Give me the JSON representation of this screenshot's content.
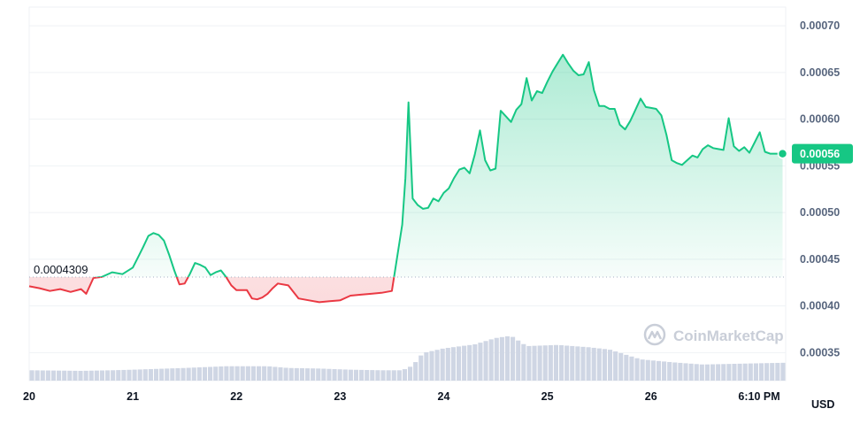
{
  "chart_data": {
    "type": "line",
    "title": "",
    "xlabel": "",
    "ylabel": "",
    "currency": "USD",
    "watermark": "CoinMarketCap",
    "reference_price": 0.0004309,
    "reference_price_label": "0.0004309",
    "current_price": 0.000563,
    "current_price_label": "0.00056",
    "ylim": [
      0.00032,
      0.00072
    ],
    "y_ticks": [
      0.00035,
      0.0004,
      0.00045,
      0.0005,
      0.00055,
      0.0006,
      0.00065,
      0.0007
    ],
    "y_tick_labels": [
      "0.00035",
      "0.00040",
      "0.00045",
      "0.00050",
      "0.00055",
      "0.00060",
      "0.00065",
      "0.00070"
    ],
    "x_ticks": [
      20,
      21,
      22,
      23,
      24,
      25,
      26,
      27
    ],
    "x_tick_labels": [
      "20",
      "21",
      "22",
      "23",
      "24",
      "25",
      "26",
      "6:10 PM"
    ],
    "xlim": [
      20,
      27.3
    ],
    "grid": true,
    "colors": {
      "up": "#16c784",
      "down": "#ea3943",
      "volume": "#cfd6e4",
      "grid": "#eff2f5",
      "reference_line": "#a6b0c3"
    },
    "series": [
      {
        "x": [
          20.0,
          20.1,
          20.2,
          20.3,
          20.4,
          20.5,
          20.55,
          20.62,
          20.7,
          20.8,
          20.9,
          21.0,
          21.05,
          21.1,
          21.15,
          21.2,
          21.25,
          21.3,
          21.35,
          21.4,
          21.45,
          21.5,
          21.55,
          21.6,
          21.65,
          21.7,
          21.75,
          21.8,
          21.85,
          21.9,
          21.95,
          22.0,
          22.05,
          22.1,
          22.15,
          22.2,
          22.25,
          22.3,
          22.35,
          22.4,
          22.5,
          22.6,
          22.7,
          22.8,
          22.9,
          23.0,
          23.1,
          23.2,
          23.3,
          23.4,
          23.5,
          23.6,
          23.63,
          23.66,
          23.7,
          23.75,
          23.8,
          23.85,
          23.9,
          23.95,
          24.0,
          24.05,
          24.1,
          24.15,
          24.2,
          24.25,
          24.3,
          24.35,
          24.4,
          24.45,
          24.5,
          24.55,
          24.6,
          24.65,
          24.7,
          24.75,
          24.8,
          24.85,
          24.9,
          24.95,
          25.0,
          25.05,
          25.1,
          25.15,
          25.2,
          25.25,
          25.3,
          25.35,
          25.4,
          25.45,
          25.5,
          25.55,
          25.6,
          25.65,
          25.7,
          25.75,
          25.8,
          25.85,
          25.9,
          25.95,
          26.0,
          26.05,
          26.1,
          26.15,
          26.2,
          26.25,
          26.3,
          26.35,
          26.4,
          26.45,
          26.5,
          26.55,
          26.6,
          26.65,
          26.7,
          26.75,
          26.8,
          26.85,
          26.9,
          26.95,
          27.0,
          27.05,
          27.1,
          27.15,
          27.2,
          27.27
        ],
        "values": [
          0.000421,
          0.000419,
          0.000416,
          0.000418,
          0.000415,
          0.000418,
          0.000413,
          0.00043,
          0.000431,
          0.000436,
          0.000434,
          0.000441,
          0.000452,
          0.000463,
          0.000475,
          0.000478,
          0.000476,
          0.00047,
          0.000455,
          0.000438,
          0.000423,
          0.000424,
          0.000434,
          0.000446,
          0.000444,
          0.000441,
          0.000433,
          0.000436,
          0.000438,
          0.000431,
          0.000422,
          0.000417,
          0.000417,
          0.000417,
          0.000408,
          0.000407,
          0.000409,
          0.000413,
          0.000419,
          0.000424,
          0.000422,
          0.000408,
          0.000406,
          0.000404,
          0.000405,
          0.000406,
          0.000411,
          0.000412,
          0.000413,
          0.000414,
          0.000416,
          0.000487,
          0.000537,
          0.000618,
          0.000515,
          0.000508,
          0.000504,
          0.000505,
          0.000515,
          0.000512,
          0.000521,
          0.000526,
          0.000537,
          0.000546,
          0.000548,
          0.000542,
          0.000562,
          0.000588,
          0.000556,
          0.000545,
          0.000547,
          0.000609,
          0.000603,
          0.000597,
          0.00061,
          0.000616,
          0.000644,
          0.00062,
          0.00063,
          0.000628,
          0.00064,
          0.000651,
          0.00066,
          0.000669,
          0.00066,
          0.000652,
          0.000647,
          0.000648,
          0.000661,
          0.000631,
          0.000614,
          0.000614,
          0.000611,
          0.000611,
          0.000594,
          0.000589,
          0.000598,
          0.00061,
          0.000622,
          0.000613,
          0.000612,
          0.000611,
          0.000604,
          0.000583,
          0.000556,
          0.000553,
          0.000551,
          0.000556,
          0.000561,
          0.000559,
          0.000568,
          0.000572,
          0.000569,
          0.000568,
          0.000567,
          0.000601,
          0.000571,
          0.000566,
          0.00057,
          0.000564,
          0.000575,
          0.000586,
          0.000565,
          0.000563,
          0.000563,
          0.000563
        ]
      }
    ],
    "volume": {
      "x": [
        20.0,
        20.5,
        20.8,
        21.0,
        21.5,
        21.9,
        22.3,
        22.5,
        22.8,
        23.1,
        23.4,
        23.6,
        23.7,
        23.8,
        24.0,
        24.3,
        24.5,
        24.65,
        24.8,
        25.1,
        25.4,
        25.6,
        25.9,
        26.2,
        26.5,
        27.0,
        27.27
      ],
      "values": [
        0.18,
        0.17,
        0.18,
        0.19,
        0.22,
        0.25,
        0.25,
        0.22,
        0.21,
        0.19,
        0.18,
        0.18,
        0.26,
        0.48,
        0.56,
        0.63,
        0.74,
        0.78,
        0.6,
        0.62,
        0.58,
        0.54,
        0.37,
        0.32,
        0.28,
        0.3,
        0.31
      ]
    }
  }
}
